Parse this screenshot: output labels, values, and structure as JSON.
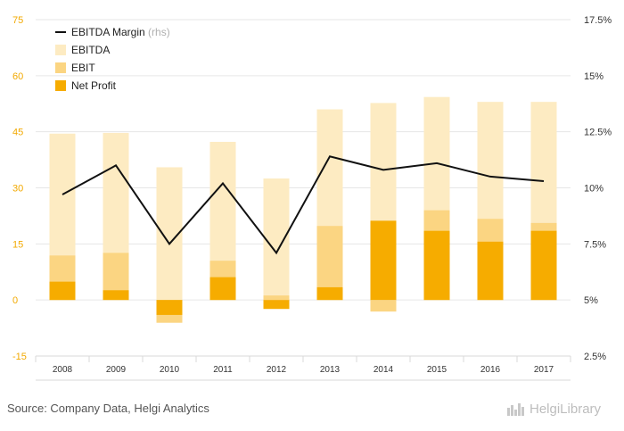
{
  "chart_data": {
    "type": "bar",
    "categories": [
      "2008",
      "2009",
      "2010",
      "2011",
      "2012",
      "2013",
      "2014",
      "2015",
      "2016",
      "2017"
    ],
    "series": [
      {
        "name": "EBITDA",
        "type": "bar",
        "axis": "left",
        "color": "#fdebc2",
        "values": [
          44.5,
          44.7,
          35.5,
          42.3,
          32.5,
          51.0,
          52.7,
          54.3,
          53.0,
          53.0
        ]
      },
      {
        "name": "EBIT",
        "type": "bar",
        "axis": "left",
        "color": "#fbd582",
        "values": [
          11.9,
          12.6,
          -6.1,
          10.5,
          1.2,
          19.8,
          -3.1,
          24.0,
          21.7,
          20.6
        ]
      },
      {
        "name": "Net Profit",
        "type": "bar",
        "axis": "left",
        "color": "#f6ac00",
        "values": [
          4.9,
          2.6,
          -4.0,
          6.1,
          -2.4,
          3.4,
          21.2,
          18.5,
          15.6,
          18.5
        ]
      },
      {
        "name": "EBITDA Margin",
        "type": "line",
        "axis": "right",
        "color": "#111111",
        "values": [
          9.7,
          11.0,
          7.5,
          10.2,
          7.1,
          11.4,
          10.8,
          11.1,
          10.5,
          10.3
        ]
      }
    ],
    "legend": [
      {
        "label": "EBITDA Margin",
        "note": "(rhs)",
        "kind": "line",
        "color": "#111111"
      },
      {
        "label": "EBITDA",
        "kind": "box",
        "color": "#fdebc2"
      },
      {
        "label": "EBIT",
        "kind": "box",
        "color": "#fbd582"
      },
      {
        "label": "Net Profit",
        "kind": "box",
        "color": "#f6ac00"
      }
    ],
    "legend_position": "top-left",
    "y_left": {
      "min": -15,
      "max": 75,
      "ticks": [
        "-15",
        "0",
        "15",
        "30",
        "45",
        "60",
        "75"
      ],
      "tick_values": [
        -15,
        0,
        15,
        30,
        45,
        60,
        75
      ],
      "color": "#f2a900"
    },
    "y_right": {
      "min": 2.5,
      "max": 17.5,
      "ticks": [
        "2.5%",
        "5%",
        "7.5%",
        "10%",
        "12.5%",
        "15%",
        "17.5%"
      ],
      "tick_values": [
        2.5,
        5,
        7.5,
        10,
        12.5,
        15,
        17.5
      ]
    },
    "grid": true,
    "grid_color": "#e6e6e6"
  },
  "footer": {
    "source": "Source: Company Data, Helgi Analytics",
    "brand": "HelgiLibrary"
  }
}
